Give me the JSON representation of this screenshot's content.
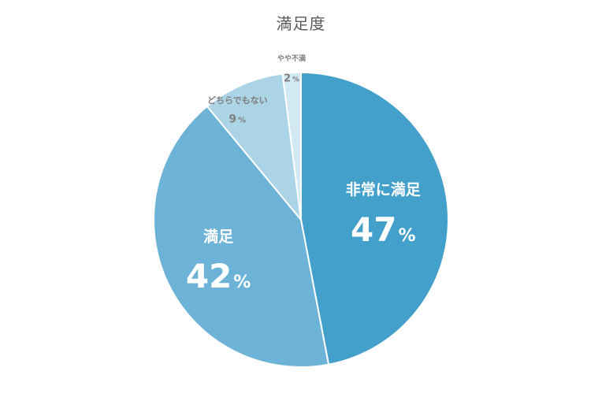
{
  "chart_data": {
    "type": "pie",
    "title": "満足度",
    "slices": [
      {
        "label": "非常に満足",
        "value": 47,
        "value_text": "47",
        "unit": "%",
        "color": "#42a0ca",
        "text_color": "#ffffff"
      },
      {
        "label": "満足",
        "value": 42,
        "value_text": "42",
        "unit": "%",
        "color": "#6cb3d7",
        "text_color": "#ffffff"
      },
      {
        "label": "どちらでもない",
        "value": 9,
        "value_text": "9",
        "unit": "%",
        "color": "#acd4e7",
        "text_color": "#7f7f7f"
      },
      {
        "label": "やや不満",
        "value": 2,
        "value_text": "2",
        "unit": "%",
        "color": "#d2e8f3",
        "text_color": "#7f7f7f"
      }
    ],
    "start": "12 o'clock",
    "direction": "clockwise",
    "slice_border_color": "#ffffff"
  }
}
